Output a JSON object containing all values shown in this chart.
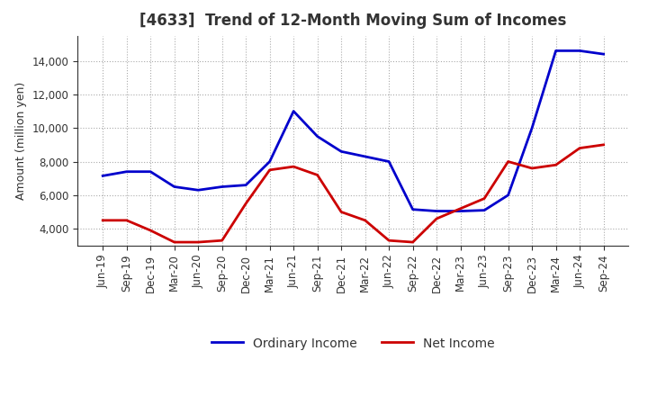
{
  "title": "[4633]  Trend of 12-Month Moving Sum of Incomes",
  "ylabel": "Amount (million yen)",
  "background_color": "#ffffff",
  "grid_color": "#aaaaaa",
  "x_labels": [
    "Jun-19",
    "Sep-19",
    "Dec-19",
    "Mar-20",
    "Jun-20",
    "Sep-20",
    "Dec-20",
    "Mar-21",
    "Jun-21",
    "Sep-21",
    "Dec-21",
    "Mar-22",
    "Jun-22",
    "Sep-22",
    "Dec-22",
    "Mar-23",
    "Jun-23",
    "Sep-23",
    "Dec-23",
    "Mar-24",
    "Jun-24",
    "Sep-24"
  ],
  "ordinary_income": [
    7150,
    7400,
    7400,
    6500,
    6300,
    6500,
    6600,
    8000,
    11000,
    9500,
    8600,
    8300,
    8000,
    5150,
    5050,
    5050,
    5100,
    6000,
    10000,
    14600,
    14600,
    14400
  ],
  "net_income": [
    4500,
    4500,
    3900,
    3200,
    3200,
    3300,
    5500,
    7500,
    7700,
    7200,
    5000,
    4500,
    3300,
    3200,
    4600,
    5200,
    5800,
    8000,
    7600,
    7800,
    8800,
    9000
  ],
  "ordinary_color": "#0000cc",
  "net_color": "#cc0000",
  "ylim": [
    3000,
    15500
  ],
  "yticks": [
    4000,
    6000,
    8000,
    10000,
    12000,
    14000
  ],
  "line_width": 2.0,
  "title_fontsize": 12,
  "title_color": "#333333",
  "tick_fontsize": 8.5,
  "ylabel_fontsize": 9,
  "legend_fontsize": 10
}
